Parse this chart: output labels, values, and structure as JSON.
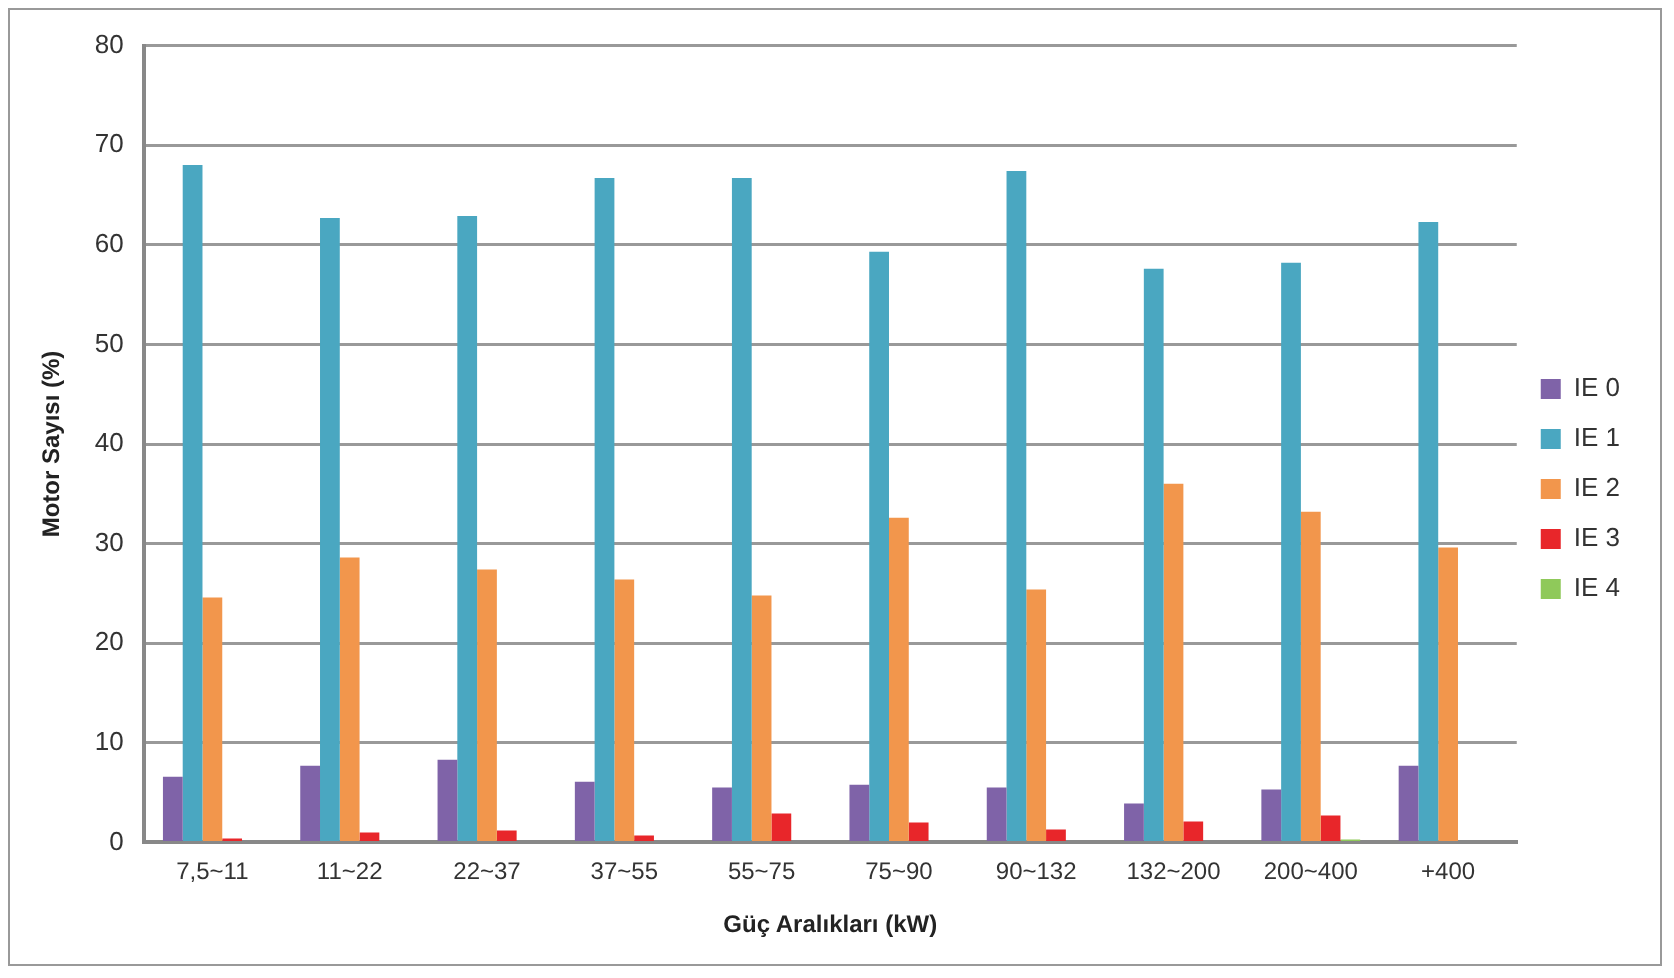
{
  "chart_data": {
    "type": "bar",
    "xlabel": "Güç Aralıkları (kW)",
    "ylabel": "Motor Sayısı (%)",
    "categories": [
      "7,5~11",
      "11~22",
      "22~37",
      "37~55",
      "55~75",
      "75~90",
      "90~132",
      "132~200",
      "200~400",
      "+400"
    ],
    "series": [
      {
        "name": "IE 0",
        "color": "#7f63a8",
        "values": [
          6.6,
          7.7,
          8.3,
          6.1,
          5.5,
          5.8,
          5.5,
          3.9,
          5.3,
          7.7
        ]
      },
      {
        "name": "IE 1",
        "color": "#4aa7c1",
        "values": [
          68,
          62.7,
          62.9,
          66.7,
          66.7,
          59.3,
          67.4,
          57.6,
          58.2,
          62.3
        ]
      },
      {
        "name": "IE 2",
        "color": "#f2964c",
        "values": [
          24.6,
          28.6,
          27.4,
          26.4,
          24.8,
          32.6,
          25.4,
          36,
          33.2,
          29.6
        ]
      },
      {
        "name": "IE 3",
        "color": "#e8262a",
        "values": [
          0.4,
          1,
          1.2,
          0.7,
          2.9,
          2,
          1.3,
          2.1,
          2.7,
          0
        ]
      },
      {
        "name": "IE 4",
        "color": "#8fc95a",
        "values": [
          0,
          0,
          0,
          0,
          0,
          0,
          0,
          0,
          0.3,
          0
        ]
      }
    ],
    "ylim": [
      0,
      80
    ],
    "yticks": [
      0,
      10,
      20,
      30,
      40,
      50,
      60,
      70,
      80
    ],
    "grid": "y",
    "legend": "right"
  }
}
